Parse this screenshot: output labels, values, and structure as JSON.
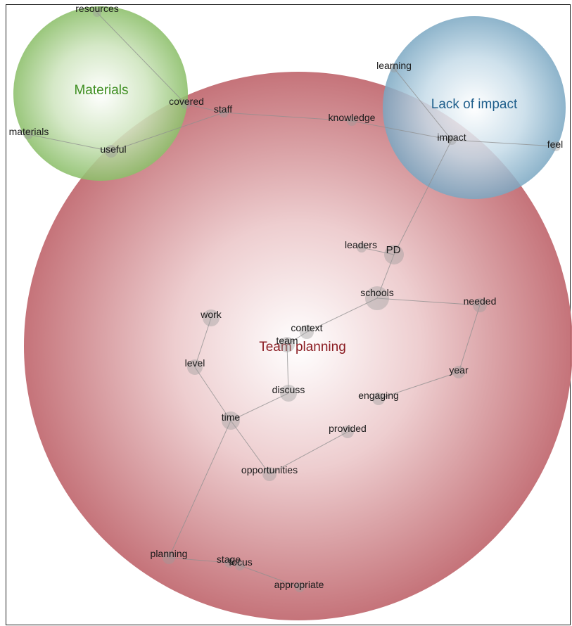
{
  "diagram": {
    "clusters": [
      {
        "id": "team-planning",
        "label": "Team planning",
        "color": "#c0676e",
        "text_color": "#8b1c22"
      },
      {
        "id": "materials",
        "label": "Materials",
        "color": "#8cbf6a",
        "text_color": "#3f8f22"
      },
      {
        "id": "lack-of-impact",
        "label": "Lack of impact",
        "color": "#7aa7c2",
        "text_color": "#1f5f8c"
      }
    ],
    "nodes": [
      {
        "id": "resources",
        "label": "resources"
      },
      {
        "id": "covered",
        "label": "covered"
      },
      {
        "id": "staff",
        "label": "staff"
      },
      {
        "id": "materials",
        "label": "materials"
      },
      {
        "id": "useful",
        "label": "useful"
      },
      {
        "id": "learning",
        "label": "learning"
      },
      {
        "id": "knowledge",
        "label": "knowledge"
      },
      {
        "id": "impact",
        "label": "impact"
      },
      {
        "id": "feel",
        "label": "feel"
      },
      {
        "id": "leaders",
        "label": "leaders"
      },
      {
        "id": "PD",
        "label": "PD"
      },
      {
        "id": "schools",
        "label": "schools"
      },
      {
        "id": "needed",
        "label": "needed"
      },
      {
        "id": "work",
        "label": "work"
      },
      {
        "id": "context",
        "label": "context"
      },
      {
        "id": "team",
        "label": "team"
      },
      {
        "id": "level",
        "label": "level"
      },
      {
        "id": "year",
        "label": "year"
      },
      {
        "id": "discuss",
        "label": "discuss"
      },
      {
        "id": "engaging",
        "label": "engaging"
      },
      {
        "id": "time",
        "label": "time"
      },
      {
        "id": "provided",
        "label": "provided"
      },
      {
        "id": "opportunities",
        "label": "opportunities"
      },
      {
        "id": "planning",
        "label": "planning"
      },
      {
        "id": "stage",
        "label": "stage"
      },
      {
        "id": "focus",
        "label": "focus"
      },
      {
        "id": "appropriate",
        "label": "appropriate"
      }
    ],
    "edges": [
      [
        "resources",
        "covered"
      ],
      [
        "covered",
        "staff"
      ],
      [
        "staff",
        "useful"
      ],
      [
        "materials",
        "useful"
      ],
      [
        "staff",
        "knowledge"
      ],
      [
        "knowledge",
        "impact"
      ],
      [
        "learning",
        "impact"
      ],
      [
        "impact",
        "feel"
      ],
      [
        "impact",
        "PD"
      ],
      [
        "leaders",
        "PD"
      ],
      [
        "PD",
        "schools"
      ],
      [
        "schools",
        "needed"
      ],
      [
        "schools",
        "context"
      ],
      [
        "context",
        "team"
      ],
      [
        "team",
        "discuss"
      ],
      [
        "needed",
        "year"
      ],
      [
        "year",
        "engaging"
      ],
      [
        "work",
        "level"
      ],
      [
        "level",
        "time"
      ],
      [
        "discuss",
        "time"
      ],
      [
        "time",
        "opportunities"
      ],
      [
        "opportunities",
        "provided"
      ],
      [
        "time",
        "planning"
      ],
      [
        "planning",
        "stage"
      ],
      [
        "stage",
        "focus"
      ],
      [
        "focus",
        "appropriate"
      ]
    ]
  }
}
